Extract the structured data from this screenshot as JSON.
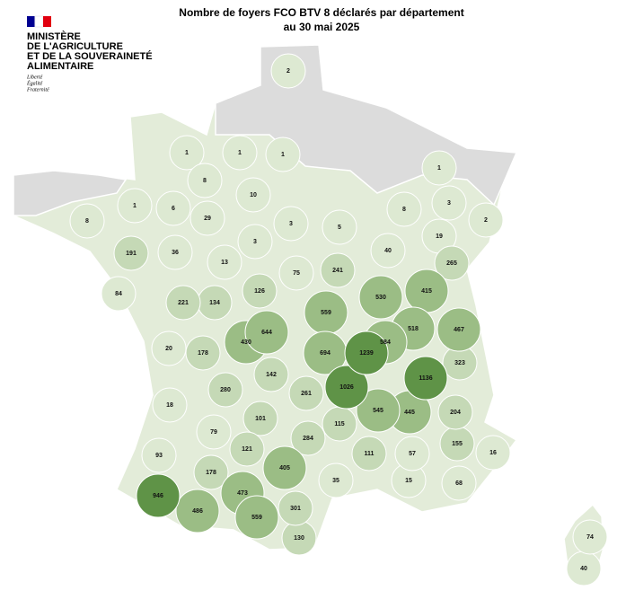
{
  "header": {
    "title": "Nombre de foyers FCO BTV 8 déclarés par département",
    "subtitle": "au 30 mai 2025"
  },
  "logo": {
    "lines": [
      "MINISTÈRE",
      "DE L'AGRICULTURE",
      "ET DE LA SOUVERAINETÉ",
      "ALIMENTAIRE"
    ],
    "motto": [
      "Liberté",
      "Égalité",
      "Fraternité"
    ]
  },
  "departments": {
    "values": [
      2,
      1,
      1,
      1,
      1,
      8,
      10,
      1,
      6,
      29,
      8,
      3,
      2,
      8,
      3,
      5,
      19,
      3,
      191,
      36,
      40,
      13,
      241,
      265,
      75,
      84,
      126,
      415,
      221,
      134,
      530,
      559,
      644,
      584,
      518,
      467,
      430,
      694,
      1239,
      20,
      178,
      323,
      142,
      1136,
      1026,
      280,
      261,
      18,
      545,
      445,
      204,
      101,
      115,
      79,
      284,
      155,
      121,
      111,
      57,
      16,
      93,
      405,
      178,
      35,
      15,
      68,
      946,
      473,
      301,
      486,
      559,
      130,
      74,
      40
    ]
  }
}
